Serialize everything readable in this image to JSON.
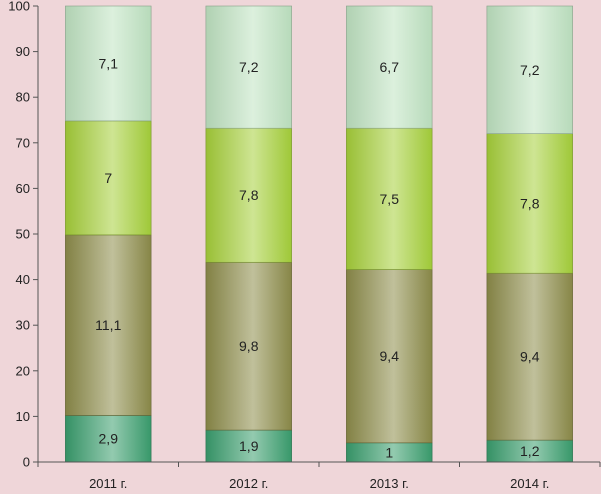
{
  "chart_data": {
    "type": "bar",
    "stacked": true,
    "categories": [
      "2011 г.",
      "2012 г.",
      "2013 г.",
      "2014 г."
    ],
    "series": [
      {
        "values": [
          10.2,
          7.0,
          4.2,
          4.8
        ],
        "labels": [
          "2,9",
          "1,9",
          "1",
          "1,2"
        ],
        "color": "#3a9e6e"
      },
      {
        "values": [
          39.6,
          36.8,
          38.0,
          36.6
        ],
        "labels": [
          "11,1",
          "9,8",
          "9,4",
          "9,4"
        ],
        "color": "#8d8c4a"
      },
      {
        "values": [
          25.0,
          29.4,
          31.0,
          30.6
        ],
        "labels": [
          "7",
          "7,8",
          "7,5",
          "7,8"
        ],
        "color": "#a6d03a"
      },
      {
        "values": [
          25.2,
          26.8,
          26.8,
          28.0
        ],
        "labels": [
          "7,1",
          "7,2",
          "6,7",
          "7,2"
        ],
        "color": "#bfe3c2"
      }
    ],
    "y_ticks": [
      "0",
      "10",
      "20",
      "30",
      "40",
      "50",
      "60",
      "70",
      "80",
      "90",
      "100"
    ],
    "ylim": [
      0,
      100
    ],
    "grid": false,
    "legend": "none"
  }
}
